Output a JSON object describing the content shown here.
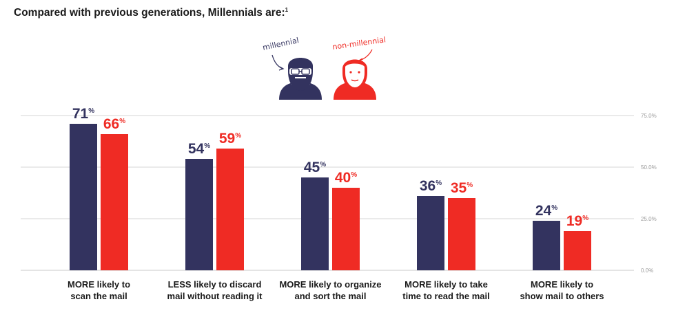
{
  "title": "Compared with previous generations, Millennials are:",
  "title_footnote": "1",
  "figures": {
    "millennial_label": "millennial",
    "non_millennial_label": "non-millennial",
    "millennial_icon": "bearded-man-glasses-icon",
    "non_millennial_icon": "man-icon"
  },
  "colors": {
    "millennial": "#33335f",
    "non_millennial": "#ef2b24",
    "grid": "#c8c8c8",
    "tick": "#999999"
  },
  "chart_data": {
    "type": "bar",
    "categories": [
      [
        "MORE likely to",
        "scan the mail"
      ],
      [
        "LESS likely to discard",
        "mail without reading it"
      ],
      [
        "MORE likely to organize",
        "and sort the mail"
      ],
      [
        "MORE likely to take",
        "time to read the mail"
      ],
      [
        "MORE likely to",
        "show mail to others"
      ]
    ],
    "series": [
      {
        "name": "millennial",
        "values": [
          71,
          54,
          45,
          36,
          24
        ]
      },
      {
        "name": "non-millennial",
        "values": [
          66,
          59,
          40,
          35,
          19
        ]
      }
    ],
    "value_suffix": "%",
    "ylim": [
      0,
      75
    ],
    "yticks": [
      0,
      25,
      50,
      75
    ],
    "ytick_labels": [
      "0.0%",
      "25.0%",
      "50.0%",
      "75.0%"
    ],
    "grid": true,
    "axis_position": "right"
  }
}
